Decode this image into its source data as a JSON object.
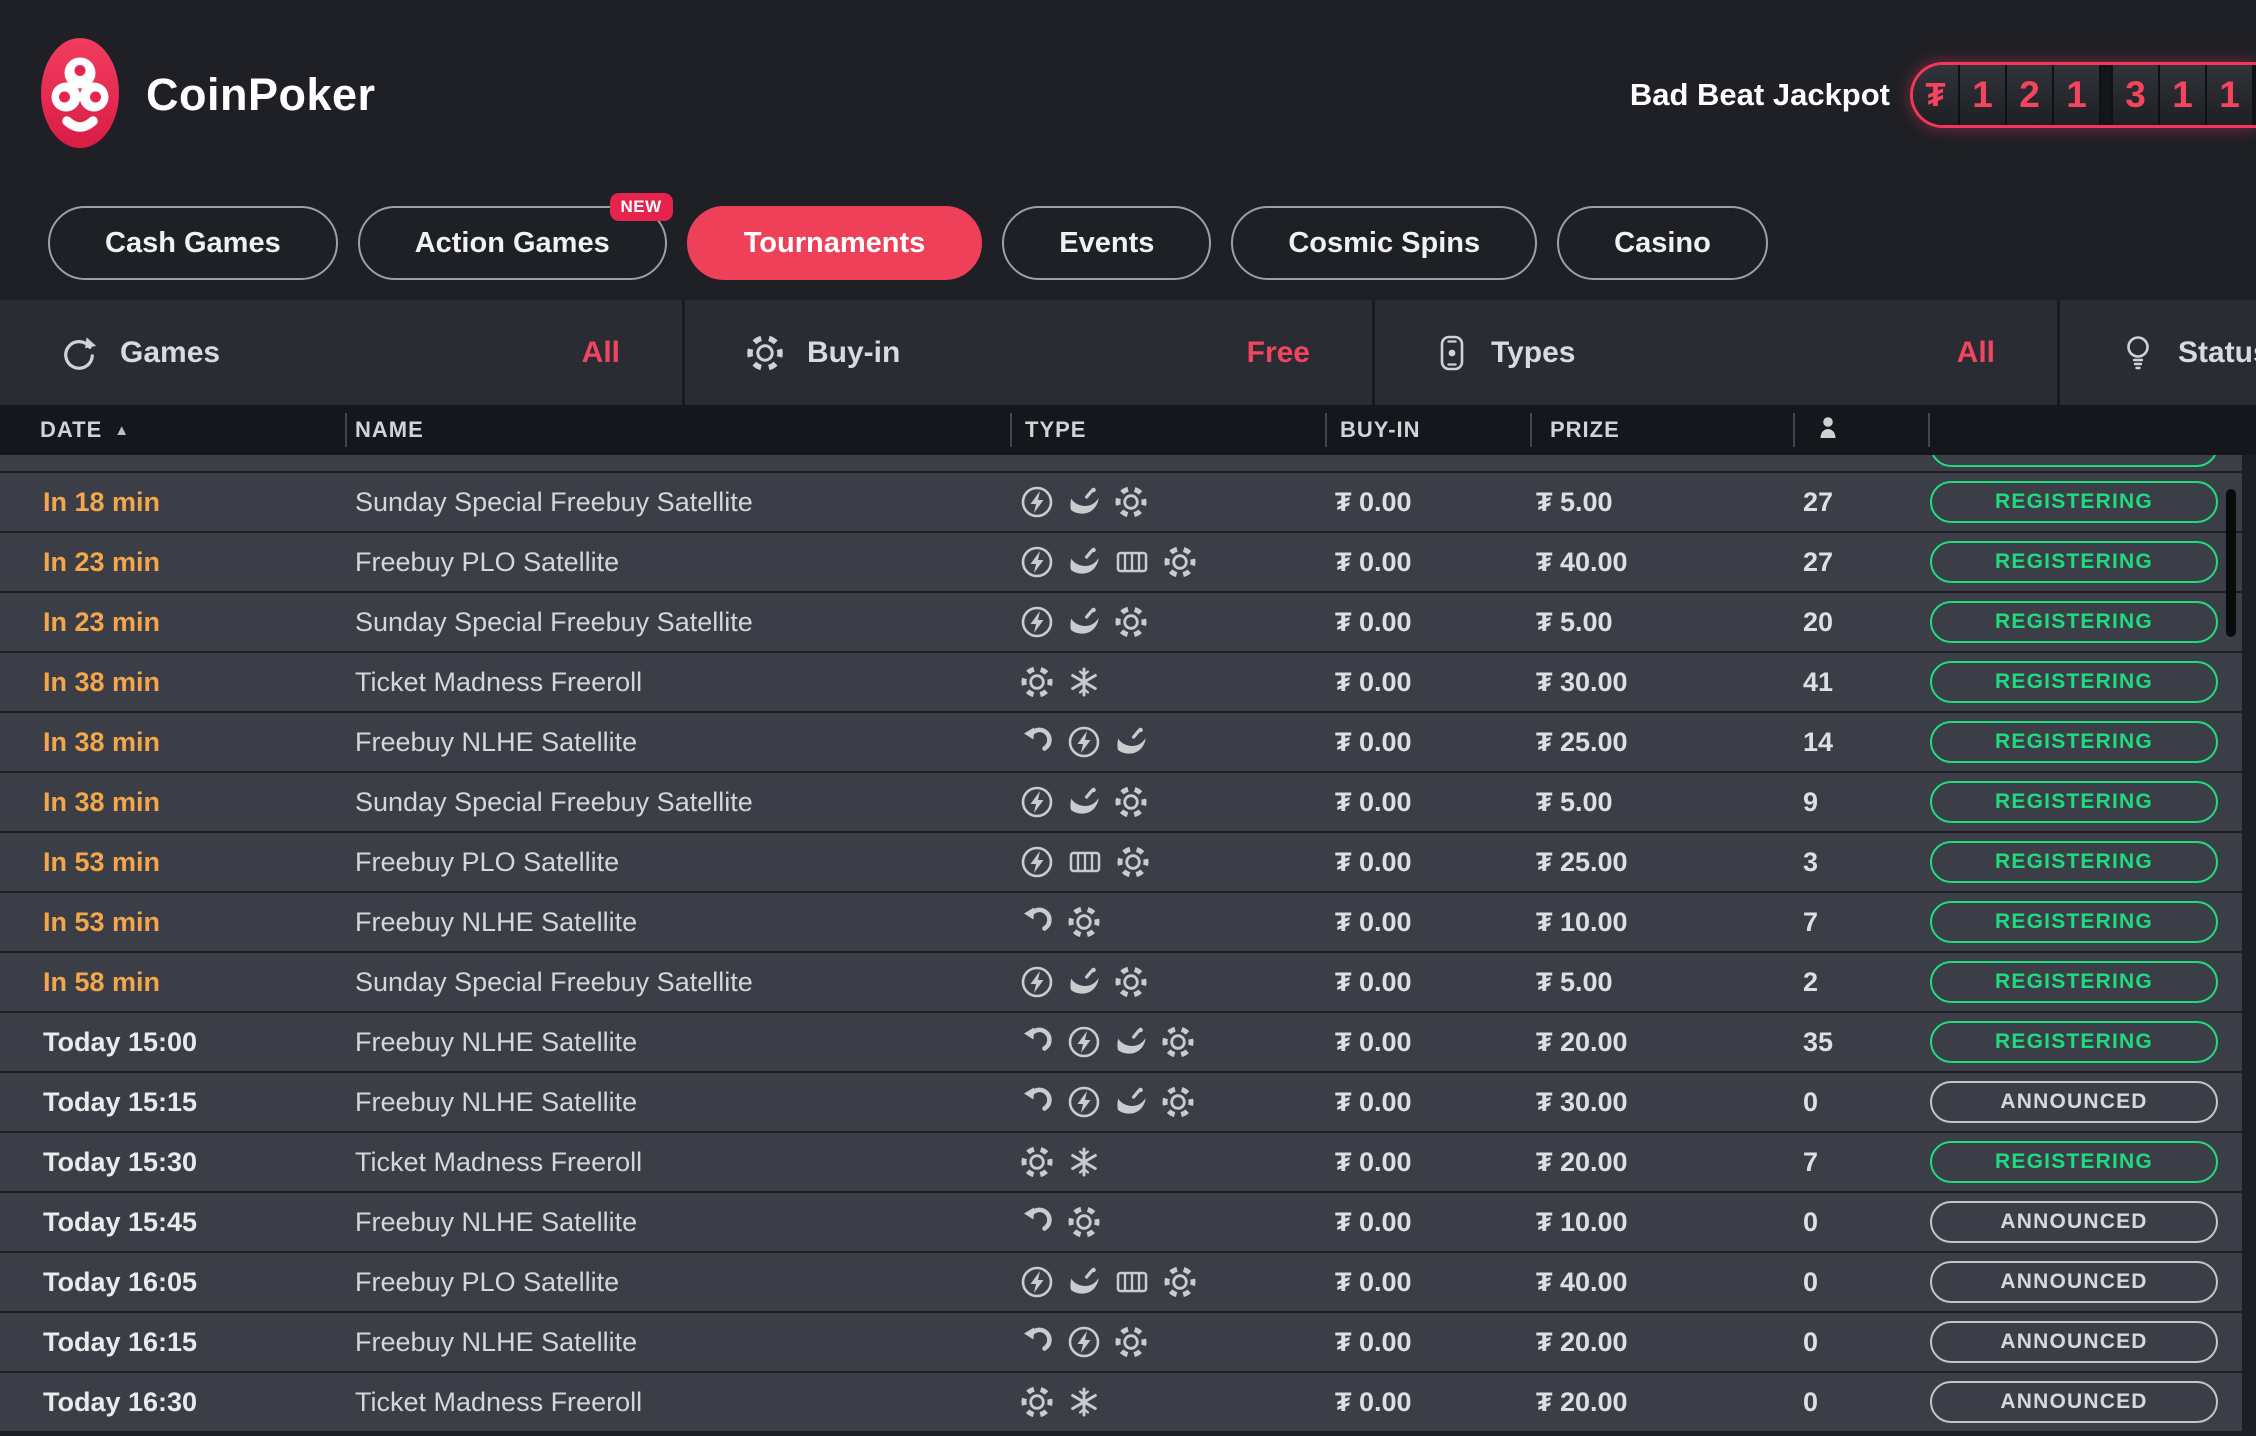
{
  "colors": {
    "accent": "#ef4059",
    "green": "#1fdb80",
    "orange": "#f3a64b",
    "announced_grey": "#c3c5c9"
  },
  "topbar": {
    "brand": "CoinPoker",
    "jackpot": {
      "label": "Bad Beat Jackpot",
      "cells": [
        {
          "type": "symbol",
          "text": "₮"
        },
        {
          "type": "digit",
          "text": "1"
        },
        {
          "type": "digit",
          "text": "2"
        },
        {
          "type": "digit",
          "text": "1"
        },
        {
          "type": "separator",
          "text": ""
        },
        {
          "type": "digit",
          "text": "3"
        },
        {
          "type": "digit",
          "text": "1"
        },
        {
          "type": "digit",
          "text": "1"
        }
      ]
    }
  },
  "nav": {
    "tabs": [
      {
        "label": "Cash Games",
        "active": false
      },
      {
        "label": "Action Games",
        "active": false,
        "badge": "NEW"
      },
      {
        "label": "Tournaments",
        "active": true
      },
      {
        "label": "Events",
        "active": false
      },
      {
        "label": "Cosmic Spins",
        "active": false
      },
      {
        "label": "Casino",
        "active": false
      }
    ]
  },
  "filters": [
    {
      "icon": "sync-icon",
      "label": "Games",
      "value": "All"
    },
    {
      "icon": "chip-icon",
      "label": "Buy-in",
      "value": "Free"
    },
    {
      "icon": "types-icon",
      "label": "Types",
      "value": "All"
    },
    {
      "icon": "bulb-icon",
      "label": "Status",
      "value": ""
    }
  ],
  "table": {
    "columns": [
      "DATE",
      "NAME",
      "TYPE",
      "BUY-IN",
      "PRIZE"
    ],
    "sort": {
      "column": "DATE",
      "direction": "asc",
      "arrow": "▲"
    },
    "rows": [
      {
        "date": "In 18 min",
        "today": false,
        "name": "Sunday Special Freebuy Satellite",
        "icons": [
          "turbo-icon",
          "rocket-icon",
          "ticket-chip-icon"
        ],
        "buyin": "₮ 0.00",
        "prize": "₮ 5.00",
        "players": "27",
        "status": "REGISTERING"
      },
      {
        "date": "In 23 min",
        "today": false,
        "name": "Freebuy PLO Satellite",
        "icons": [
          "turbo-icon",
          "rocket-icon",
          "cards-icon",
          "ticket-chip-icon"
        ],
        "buyin": "₮ 0.00",
        "prize": "₮ 40.00",
        "players": "27",
        "status": "REGISTERING"
      },
      {
        "date": "In 23 min",
        "today": false,
        "name": "Sunday Special Freebuy Satellite",
        "icons": [
          "turbo-icon",
          "rocket-icon",
          "ticket-chip-icon"
        ],
        "buyin": "₮ 0.00",
        "prize": "₮ 5.00",
        "players": "20",
        "status": "REGISTERING"
      },
      {
        "date": "In 38 min",
        "today": false,
        "name": "Ticket Madness Freeroll",
        "icons": [
          "ticket-chip-icon",
          "snowflake-icon"
        ],
        "buyin": "₮ 0.00",
        "prize": "₮ 30.00",
        "players": "41",
        "status": "REGISTERING"
      },
      {
        "date": "In 38 min",
        "today": false,
        "name": "Freebuy NLHE Satellite",
        "icons": [
          "reentry-icon",
          "turbo-icon",
          "rocket-icon"
        ],
        "buyin": "₮ 0.00",
        "prize": "₮ 25.00",
        "players": "14",
        "status": "REGISTERING"
      },
      {
        "date": "In 38 min",
        "today": false,
        "name": "Sunday Special Freebuy Satellite",
        "icons": [
          "turbo-icon",
          "rocket-icon",
          "ticket-chip-icon"
        ],
        "buyin": "₮ 0.00",
        "prize": "₮ 5.00",
        "players": "9",
        "status": "REGISTERING"
      },
      {
        "date": "In 53 min",
        "today": false,
        "name": "Freebuy PLO Satellite",
        "icons": [
          "turbo-icon",
          "cards-icon",
          "ticket-chip-icon"
        ],
        "buyin": "₮ 0.00",
        "prize": "₮ 25.00",
        "players": "3",
        "status": "REGISTERING"
      },
      {
        "date": "In 53 min",
        "today": false,
        "name": "Freebuy NLHE Satellite",
        "icons": [
          "reentry-icon",
          "ticket-chip-icon"
        ],
        "buyin": "₮ 0.00",
        "prize": "₮ 10.00",
        "players": "7",
        "status": "REGISTERING"
      },
      {
        "date": "In 58 min",
        "today": false,
        "name": "Sunday Special Freebuy Satellite",
        "icons": [
          "turbo-icon",
          "rocket-icon",
          "ticket-chip-icon"
        ],
        "buyin": "₮ 0.00",
        "prize": "₮ 5.00",
        "players": "2",
        "status": "REGISTERING"
      },
      {
        "date": "Today 15:00",
        "today": true,
        "name": "Freebuy NLHE Satellite",
        "icons": [
          "reentry-icon",
          "turbo-icon",
          "rocket-icon",
          "ticket-chip-icon"
        ],
        "buyin": "₮ 0.00",
        "prize": "₮ 20.00",
        "players": "35",
        "status": "REGISTERING"
      },
      {
        "date": "Today 15:15",
        "today": true,
        "name": "Freebuy NLHE Satellite",
        "icons": [
          "reentry-icon",
          "turbo-icon",
          "rocket-icon",
          "ticket-chip-icon"
        ],
        "buyin": "₮ 0.00",
        "prize": "₮ 30.00",
        "players": "0",
        "status": "ANNOUNCED"
      },
      {
        "date": "Today 15:30",
        "today": true,
        "name": "Ticket Madness Freeroll",
        "icons": [
          "ticket-chip-icon",
          "snowflake-icon"
        ],
        "buyin": "₮ 0.00",
        "prize": "₮ 20.00",
        "players": "7",
        "status": "REGISTERING"
      },
      {
        "date": "Today 15:45",
        "today": true,
        "name": "Freebuy NLHE Satellite",
        "icons": [
          "reentry-icon",
          "ticket-chip-icon"
        ],
        "buyin": "₮ 0.00",
        "prize": "₮ 10.00",
        "players": "0",
        "status": "ANNOUNCED"
      },
      {
        "date": "Today 16:05",
        "today": true,
        "name": "Freebuy PLO Satellite",
        "icons": [
          "turbo-icon",
          "rocket-icon",
          "cards-icon",
          "ticket-chip-icon"
        ],
        "buyin": "₮ 0.00",
        "prize": "₮ 40.00",
        "players": "0",
        "status": "ANNOUNCED"
      },
      {
        "date": "Today 16:15",
        "today": true,
        "name": "Freebuy NLHE Satellite",
        "icons": [
          "reentry-icon",
          "turbo-icon",
          "ticket-chip-icon"
        ],
        "buyin": "₮ 0.00",
        "prize": "₮ 20.00",
        "players": "0",
        "status": "ANNOUNCED"
      },
      {
        "date": "Today 16:30",
        "today": true,
        "name": "Ticket Madness Freeroll",
        "icons": [
          "ticket-chip-icon",
          "snowflake-icon"
        ],
        "buyin": "₮ 0.00",
        "prize": "₮ 20.00",
        "players": "0",
        "status": "ANNOUNCED"
      }
    ]
  }
}
